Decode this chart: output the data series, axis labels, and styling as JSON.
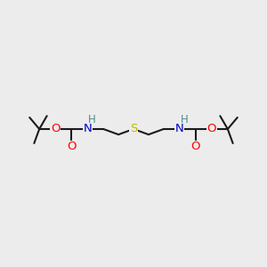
{
  "bg_color": "#ececec",
  "bond_color": "#1a1a1a",
  "bond_width": 1.5,
  "atom_colors": {
    "O": "#ff0000",
    "N": "#0000cc",
    "S": "#bbbb00",
    "H": "#4a9090",
    "C": "#1a1a1a"
  },
  "font_size": 9.5,
  "fig_width": 3.0,
  "fig_height": 3.0,
  "dpi": 100
}
